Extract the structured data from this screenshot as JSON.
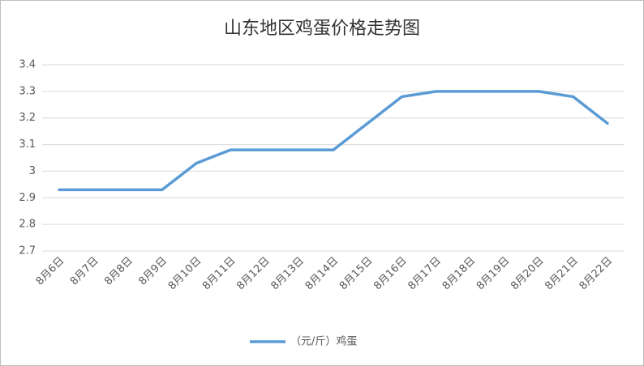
{
  "chart_data": {
    "type": "line",
    "title": "山东地区鸡蛋价格走势图",
    "categories": [
      "8月6日",
      "8月7日",
      "8月8日",
      "8月9日",
      "8月10日",
      "8月11日",
      "8月12日",
      "8月13日",
      "8月14日",
      "8月15日",
      "8月16日",
      "8月17日",
      "8月18日",
      "8月19日",
      "8月20日",
      "8月21日",
      "8月22日"
    ],
    "series": [
      {
        "name": "（元/斤）鸡蛋",
        "color": "#5b9bd5",
        "values": [
          2.93,
          2.93,
          2.93,
          2.93,
          3.03,
          3.08,
          3.08,
          3.08,
          3.08,
          3.18,
          3.28,
          3.3,
          3.3,
          3.3,
          3.3,
          3.28,
          3.18
        ]
      }
    ],
    "ylim": [
      2.7,
      3.4
    ],
    "yticks": [
      2.7,
      2.8,
      2.9,
      3,
      3.1,
      3.2,
      3.3,
      3.4
    ],
    "grid": true,
    "legend": "bottom"
  }
}
